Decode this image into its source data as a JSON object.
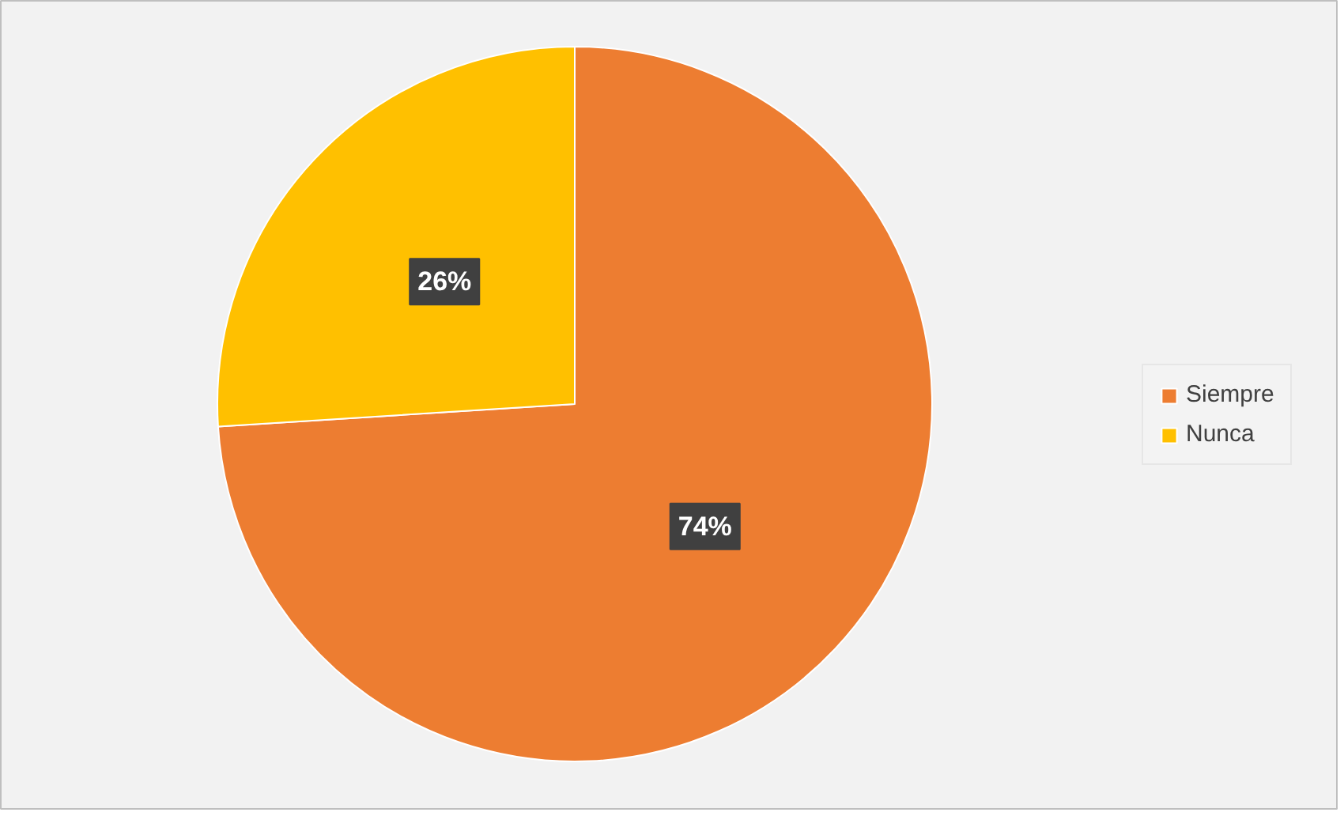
{
  "chart_data": {
    "type": "pie",
    "categories": [
      "Siempre",
      "Nunca"
    ],
    "values": [
      74,
      26
    ],
    "colors": [
      "#ed7d31",
      "#ffc000"
    ],
    "value_labels": [
      "74%",
      "26%"
    ],
    "legend": "right"
  }
}
